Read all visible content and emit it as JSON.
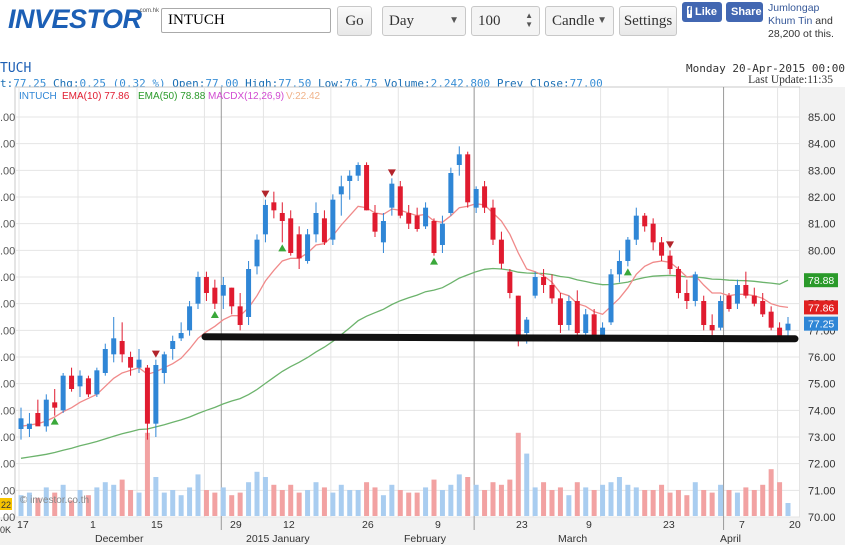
{
  "header": {
    "logo": "INVESTOR",
    "logo_suffix": ".com.hk",
    "symbol_value": "INTUCH",
    "go_label": "Go",
    "period_value": "Day",
    "count_value": "100",
    "chart_type_value": "Candle",
    "settings_label": "Settings",
    "fb_like": "Like",
    "fb_share": "Share",
    "fb_text_link": "Jumlongap Khum Tin",
    "fb_text_rest": "and 28,200 ot this."
  },
  "quote": {
    "title": "TUCH",
    "last_label": "t:",
    "last": "77.25",
    "chg_label": "Chg:",
    "chg": "0.25 (0.32 %)",
    "open_label": "Open:",
    "open": "77.00",
    "high_label": "High:",
    "high": "77.50",
    "low_label": "Low:",
    "low": "76.75",
    "volume_label": "Volume:",
    "volume": "2,242,800",
    "prev_label": "Prev Close:",
    "prev": "77.00",
    "date": "Monday 20-Apr-2015 00:00",
    "last_update": "Last Update:11:35"
  },
  "legend": {
    "symbol": "INTUCH",
    "ema10": "EMA(10) 77.86",
    "ema50": "EMA(50) 78.88",
    "macd": "MACDX(12,26,9)",
    "vol": "V:22.42"
  },
  "watermark": "© investor.co.th",
  "colors": {
    "up": "#2f86d6",
    "down": "#e01b2f",
    "ema10": "#f08a8a",
    "ema50": "#6cb36c",
    "macd": "#d14bd1",
    "vol_up": "#a9cdf0",
    "vol_down": "#f2a2a2",
    "support": "#111111",
    "ema50_tag": "#2a9a2a",
    "ema10_tag": "#e02020",
    "last_tag": "#2f86d6"
  },
  "chart_data": {
    "type": "candlestick",
    "symbol": "INTUCH",
    "yaxis_right_ticks": [
      "85.00",
      "84.00",
      "83.00",
      "82.00",
      "81.00",
      "80.00",
      "79.00",
      "78.00",
      "77.00",
      "76.00",
      "75.00",
      "74.00",
      "73.00",
      "72.00",
      "71.00",
      "70.00"
    ],
    "yaxis_left_ticks": [
      ".00",
      ".00",
      ".00",
      ".00",
      ".00",
      ".00",
      ".00",
      ".00",
      ".00",
      ".00",
      ".00",
      ".00",
      ".00",
      ".00",
      ".00",
      ".00"
    ],
    "ylim": [
      69.8,
      85.3
    ],
    "x_day_labels": [
      "17",
      "1",
      "15",
      "29",
      "12",
      "26",
      "9",
      "23",
      "9",
      "23",
      "7",
      "20"
    ],
    "x_month_labels": [
      "December",
      "2015 January",
      "February",
      "March",
      "April"
    ],
    "left_edge_labels": [
      "22",
      "0K"
    ],
    "price_tags": {
      "ema50": "78.88",
      "ema10": "77.86",
      "last": "77.25"
    },
    "support_level": 76.72,
    "candles": [
      {
        "o": 73.3,
        "h": 74.1,
        "l": 72.9,
        "c": 73.7
      },
      {
        "o": 73.3,
        "h": 73.9,
        "l": 73.0,
        "c": 73.5
      },
      {
        "o": 73.9,
        "h": 74.4,
        "l": 73.5,
        "c": 73.4
      },
      {
        "o": 73.4,
        "h": 74.6,
        "l": 73.2,
        "c": 74.4
      },
      {
        "o": 74.3,
        "h": 74.8,
        "l": 73.8,
        "c": 74.1
      },
      {
        "o": 74.0,
        "h": 75.4,
        "l": 73.9,
        "c": 75.3
      },
      {
        "o": 75.3,
        "h": 75.6,
        "l": 74.7,
        "c": 74.8
      },
      {
        "o": 74.9,
        "h": 75.5,
        "l": 74.5,
        "c": 75.3
      },
      {
        "o": 75.2,
        "h": 75.3,
        "l": 74.5,
        "c": 74.6
      },
      {
        "o": 74.6,
        "h": 75.6,
        "l": 74.5,
        "c": 75.5
      },
      {
        "o": 75.4,
        "h": 76.5,
        "l": 75.3,
        "c": 76.3
      },
      {
        "o": 76.1,
        "h": 77.5,
        "l": 75.8,
        "c": 76.7
      },
      {
        "o": 76.6,
        "h": 77.3,
        "l": 75.8,
        "c": 76.1
      },
      {
        "o": 76.0,
        "h": 76.2,
        "l": 75.3,
        "c": 75.6
      },
      {
        "o": 75.6,
        "h": 76.3,
        "l": 75.4,
        "c": 75.9
      },
      {
        "o": 75.6,
        "h": 75.7,
        "l": 72.9,
        "c": 73.5
      },
      {
        "o": 73.5,
        "h": 75.9,
        "l": 73.0,
        "c": 75.7
      },
      {
        "o": 75.4,
        "h": 76.2,
        "l": 75.0,
        "c": 76.1
      },
      {
        "o": 76.3,
        "h": 76.8,
        "l": 75.9,
        "c": 76.6
      },
      {
        "o": 76.7,
        "h": 77.3,
        "l": 76.6,
        "c": 76.9
      },
      {
        "o": 77.0,
        "h": 78.1,
        "l": 76.8,
        "c": 77.9
      },
      {
        "o": 78.0,
        "h": 79.2,
        "l": 77.8,
        "c": 79.0
      },
      {
        "o": 79.0,
        "h": 79.2,
        "l": 78.1,
        "c": 78.4
      },
      {
        "o": 78.6,
        "h": 78.9,
        "l": 77.8,
        "c": 78.0
      },
      {
        "o": 78.3,
        "h": 79.0,
        "l": 77.8,
        "c": 78.7
      },
      {
        "o": 78.6,
        "h": 78.6,
        "l": 77.6,
        "c": 77.9
      },
      {
        "o": 77.9,
        "h": 78.4,
        "l": 77.0,
        "c": 77.2
      },
      {
        "o": 77.5,
        "h": 79.6,
        "l": 77.2,
        "c": 79.3
      },
      {
        "o": 79.4,
        "h": 80.6,
        "l": 79.1,
        "c": 80.4
      },
      {
        "o": 80.6,
        "h": 81.9,
        "l": 80.3,
        "c": 81.7
      },
      {
        "o": 81.8,
        "h": 82.2,
        "l": 81.2,
        "c": 81.5
      },
      {
        "o": 81.4,
        "h": 81.8,
        "l": 80.3,
        "c": 81.1
      },
      {
        "o": 81.2,
        "h": 81.5,
        "l": 79.8,
        "c": 79.9
      },
      {
        "o": 80.6,
        "h": 80.9,
        "l": 79.3,
        "c": 79.7
      },
      {
        "o": 79.6,
        "h": 80.8,
        "l": 79.5,
        "c": 80.6
      },
      {
        "o": 80.6,
        "h": 81.8,
        "l": 80.3,
        "c": 81.4
      },
      {
        "o": 81.2,
        "h": 81.5,
        "l": 80.2,
        "c": 80.3
      },
      {
        "o": 80.4,
        "h": 82.1,
        "l": 80.2,
        "c": 81.9
      },
      {
        "o": 82.1,
        "h": 82.8,
        "l": 81.3,
        "c": 82.4
      },
      {
        "o": 82.6,
        "h": 83.0,
        "l": 81.9,
        "c": 82.8
      },
      {
        "o": 82.8,
        "h": 83.3,
        "l": 82.6,
        "c": 83.2
      },
      {
        "o": 83.2,
        "h": 83.3,
        "l": 81.5,
        "c": 81.5
      },
      {
        "o": 81.4,
        "h": 81.7,
        "l": 80.5,
        "c": 80.7
      },
      {
        "o": 80.3,
        "h": 81.4,
        "l": 79.9,
        "c": 81.1
      },
      {
        "o": 81.6,
        "h": 82.7,
        "l": 81.3,
        "c": 82.5
      },
      {
        "o": 82.4,
        "h": 82.6,
        "l": 81.2,
        "c": 81.3
      },
      {
        "o": 81.4,
        "h": 81.7,
        "l": 80.8,
        "c": 81.0
      },
      {
        "o": 81.3,
        "h": 81.6,
        "l": 80.7,
        "c": 80.8
      },
      {
        "o": 80.9,
        "h": 81.8,
        "l": 80.8,
        "c": 81.6
      },
      {
        "o": 81.1,
        "h": 81.2,
        "l": 79.8,
        "c": 79.9
      },
      {
        "o": 80.2,
        "h": 81.3,
        "l": 79.9,
        "c": 81.0
      },
      {
        "o": 81.4,
        "h": 83.1,
        "l": 81.3,
        "c": 82.9
      },
      {
        "o": 83.2,
        "h": 83.9,
        "l": 82.8,
        "c": 83.6
      },
      {
        "o": 83.6,
        "h": 83.7,
        "l": 81.6,
        "c": 81.8
      },
      {
        "o": 81.6,
        "h": 82.4,
        "l": 81.4,
        "c": 82.3
      },
      {
        "o": 82.4,
        "h": 82.6,
        "l": 81.4,
        "c": 81.6
      },
      {
        "o": 81.6,
        "h": 81.9,
        "l": 80.2,
        "c": 80.4
      },
      {
        "o": 80.4,
        "h": 80.7,
        "l": 79.3,
        "c": 79.5
      },
      {
        "o": 79.2,
        "h": 79.3,
        "l": 78.2,
        "c": 78.4
      },
      {
        "o": 78.3,
        "h": 78.3,
        "l": 76.4,
        "c": 76.8
      },
      {
        "o": 76.9,
        "h": 77.5,
        "l": 76.5,
        "c": 77.4
      },
      {
        "o": 78.3,
        "h": 79.2,
        "l": 78.2,
        "c": 79.0
      },
      {
        "o": 79.0,
        "h": 79.3,
        "l": 78.4,
        "c": 78.7
      },
      {
        "o": 78.7,
        "h": 79.1,
        "l": 78.0,
        "c": 78.2
      },
      {
        "o": 78.2,
        "h": 78.4,
        "l": 76.9,
        "c": 77.2
      },
      {
        "o": 77.2,
        "h": 78.3,
        "l": 77.0,
        "c": 78.1
      },
      {
        "o": 78.1,
        "h": 78.5,
        "l": 76.8,
        "c": 76.9
      },
      {
        "o": 76.9,
        "h": 77.8,
        "l": 76.8,
        "c": 77.6
      },
      {
        "o": 77.6,
        "h": 77.8,
        "l": 76.7,
        "c": 76.8
      },
      {
        "o": 76.8,
        "h": 77.3,
        "l": 76.7,
        "c": 77.1
      },
      {
        "o": 77.3,
        "h": 79.3,
        "l": 77.2,
        "c": 79.1
      },
      {
        "o": 79.1,
        "h": 80.0,
        "l": 78.8,
        "c": 79.6
      },
      {
        "o": 79.6,
        "h": 80.5,
        "l": 79.4,
        "c": 80.4
      },
      {
        "o": 80.4,
        "h": 81.6,
        "l": 80.2,
        "c": 81.3
      },
      {
        "o": 81.3,
        "h": 81.4,
        "l": 80.7,
        "c": 80.9
      },
      {
        "o": 81.0,
        "h": 81.2,
        "l": 80.0,
        "c": 80.3
      },
      {
        "o": 80.3,
        "h": 80.5,
        "l": 79.6,
        "c": 79.8
      },
      {
        "o": 79.8,
        "h": 80.0,
        "l": 79.1,
        "c": 79.3
      },
      {
        "o": 79.3,
        "h": 79.4,
        "l": 78.2,
        "c": 78.4
      },
      {
        "o": 78.4,
        "h": 78.9,
        "l": 77.8,
        "c": 78.1
      },
      {
        "o": 78.1,
        "h": 79.2,
        "l": 77.9,
        "c": 79.1
      },
      {
        "o": 78.1,
        "h": 78.3,
        "l": 77.0,
        "c": 77.2
      },
      {
        "o": 77.2,
        "h": 77.6,
        "l": 76.7,
        "c": 77.0
      },
      {
        "o": 77.1,
        "h": 78.3,
        "l": 77.0,
        "c": 78.1
      },
      {
        "o": 78.3,
        "h": 78.4,
        "l": 77.7,
        "c": 77.8
      },
      {
        "o": 78.0,
        "h": 78.9,
        "l": 77.8,
        "c": 78.7
      },
      {
        "o": 78.7,
        "h": 79.2,
        "l": 78.2,
        "c": 78.3
      },
      {
        "o": 78.3,
        "h": 78.6,
        "l": 77.9,
        "c": 78.0
      },
      {
        "o": 78.1,
        "h": 78.4,
        "l": 77.5,
        "c": 77.6
      },
      {
        "o": 77.7,
        "h": 77.9,
        "l": 77.0,
        "c": 77.1
      },
      {
        "o": 77.1,
        "h": 77.3,
        "l": 76.6,
        "c": 76.7
      },
      {
        "o": 77.0,
        "h": 77.5,
        "l": 76.75,
        "c": 77.25
      }
    ],
    "ema10": [
      73.4,
      73.45,
      73.5,
      73.6,
      73.75,
      73.95,
      74.1,
      74.3,
      74.45,
      74.6,
      74.9,
      75.2,
      75.4,
      75.5,
      75.6,
      75.35,
      75.45,
      75.6,
      75.75,
      75.95,
      76.3,
      76.7,
      76.95,
      77.15,
      77.4,
      77.55,
      77.55,
      77.85,
      78.3,
      78.85,
      79.25,
      79.6,
      79.7,
      79.7,
      79.9,
      80.2,
      80.25,
      80.55,
      80.95,
      81.3,
      81.65,
      81.6,
      81.4,
      81.35,
      81.55,
      81.5,
      81.4,
      81.3,
      81.35,
      81.1,
      81.05,
      81.3,
      81.6,
      81.65,
      81.75,
      81.7,
      81.4,
      81.1,
      80.6,
      79.9,
      79.3,
      79.2,
      79.05,
      78.8,
      78.4,
      78.3,
      78.0,
      77.9,
      77.7,
      77.6,
      77.9,
      78.2,
      78.6,
      79.1,
      79.4,
      79.55,
      79.6,
      79.55,
      79.3,
      79.0,
      79.05,
      78.7,
      78.4,
      78.4,
      78.3,
      78.35,
      78.35,
      78.3,
      78.2,
      78.0,
      77.9,
      77.86
    ],
    "ema50": [
      72.2,
      72.25,
      72.3,
      72.35,
      72.42,
      72.5,
      72.58,
      72.67,
      72.75,
      72.83,
      72.93,
      73.03,
      73.12,
      73.2,
      73.28,
      73.3,
      73.38,
      73.46,
      73.55,
      73.64,
      73.75,
      73.88,
      74.0,
      74.11,
      74.24,
      74.35,
      74.44,
      74.59,
      74.78,
      75.01,
      75.24,
      75.46,
      75.64,
      75.8,
      75.98,
      76.19,
      76.37,
      76.59,
      76.84,
      77.09,
      77.36,
      77.53,
      77.66,
      77.79,
      77.97,
      78.11,
      78.22,
      78.32,
      78.45,
      78.51,
      78.6,
      78.77,
      78.96,
      79.08,
      79.2,
      79.29,
      79.32,
      79.3,
      79.26,
      79.18,
      79.15,
      79.14,
      79.13,
      79.09,
      79.02,
      78.98,
      78.89,
      78.83,
      78.76,
      78.71,
      78.72,
      78.76,
      78.81,
      78.91,
      78.98,
      79.03,
      79.05,
      79.06,
      79.04,
      79.0,
      79.0,
      78.97,
      78.92,
      78.91,
      78.88,
      78.87,
      78.86,
      78.84,
      78.8,
      78.77,
      78.73,
      78.88
    ],
    "volume": [
      0.8,
      0.9,
      0.7,
      1.1,
      0.9,
      1.2,
      0.6,
      1.0,
      0.8,
      1.1,
      1.3,
      1.2,
      1.4,
      1.0,
      0.9,
      3.2,
      1.5,
      0.9,
      1.0,
      0.8,
      1.1,
      1.6,
      1.0,
      0.9,
      1.1,
      0.8,
      0.9,
      1.3,
      1.7,
      1.5,
      1.2,
      1.0,
      1.2,
      0.9,
      1.0,
      1.3,
      1.1,
      0.9,
      1.2,
      1.0,
      1.0,
      1.3,
      1.1,
      0.8,
      1.2,
      1.0,
      0.9,
      0.9,
      1.1,
      1.4,
      1.0,
      1.2,
      1.6,
      1.5,
      1.2,
      1.0,
      1.3,
      1.2,
      1.4,
      3.2,
      2.4,
      1.1,
      1.3,
      1.0,
      1.1,
      0.8,
      1.3,
      1.1,
      1.0,
      1.2,
      1.3,
      1.5,
      1.2,
      1.1,
      1.0,
      1.0,
      1.2,
      0.9,
      1.0,
      0.8,
      1.3,
      1.0,
      0.9,
      1.2,
      1.0,
      0.9,
      1.1,
      1.0,
      1.2,
      1.8,
      1.3,
      0.5
    ],
    "markers_up": [
      4,
      23,
      31,
      49,
      72
    ],
    "markers_down": [
      16,
      29,
      44,
      77
    ]
  }
}
